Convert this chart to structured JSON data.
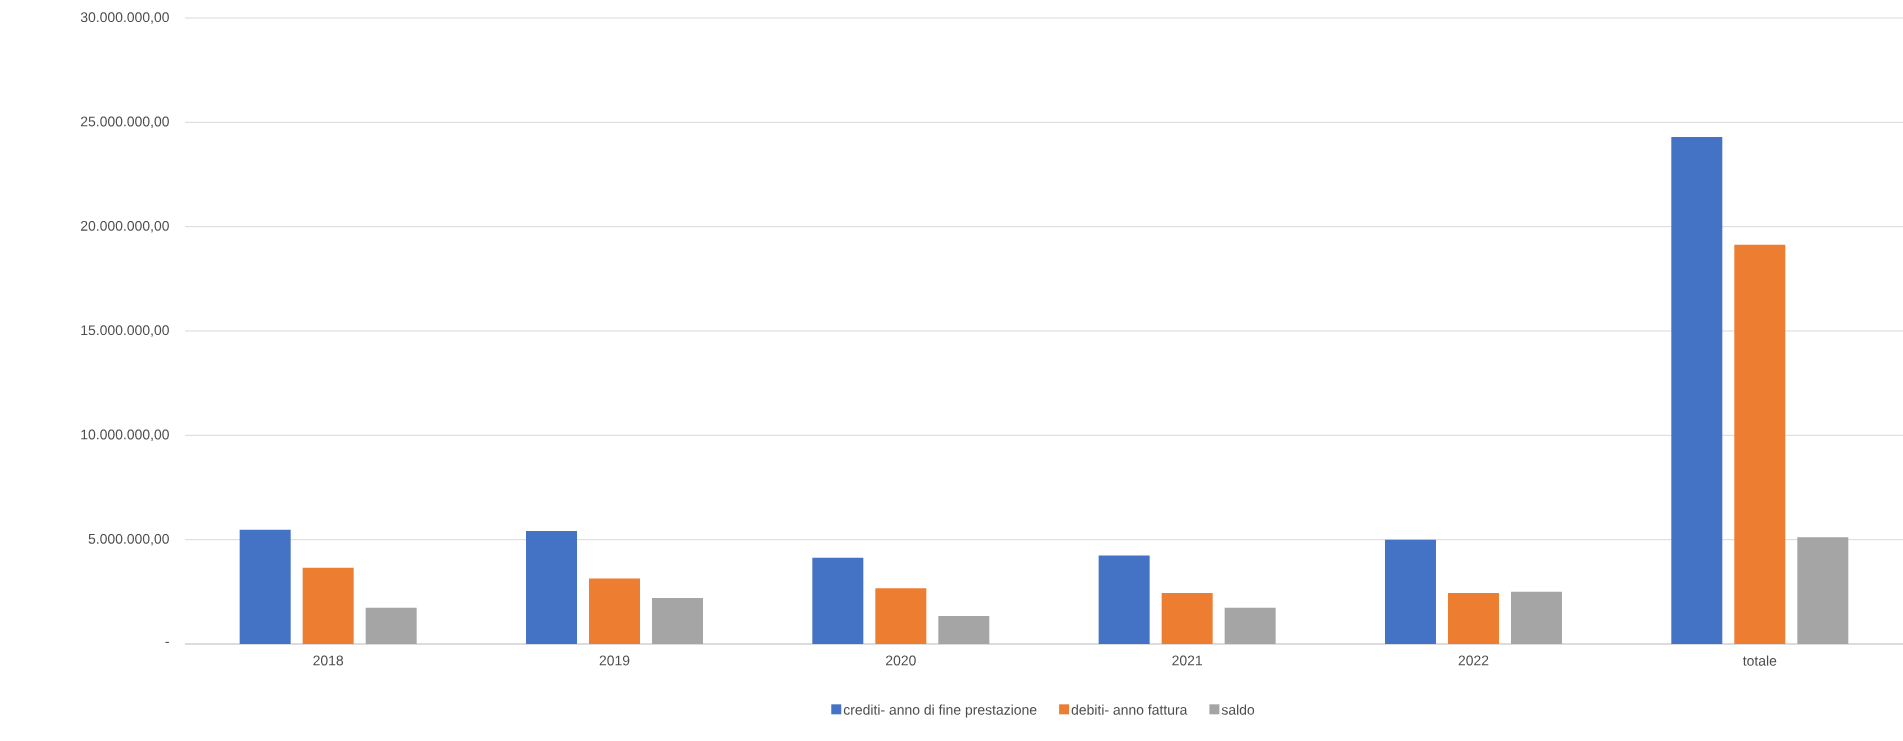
{
  "chart_data": {
    "type": "bar",
    "categories": [
      "2018",
      "2019",
      "2020",
      "2021",
      "2022",
      "totale"
    ],
    "series": [
      {
        "name": "crediti- anno di fine prestazione",
        "color": "#4472c4",
        "values": [
          5470000,
          5410000,
          4130000,
          4240000,
          5000000,
          24300000
        ]
      },
      {
        "name": "debiti- anno fattura",
        "color": "#ed7d31",
        "values": [
          3660000,
          3140000,
          2670000,
          2440000,
          2440000,
          19130000
        ]
      },
      {
        "name": "saldo",
        "color": "#a5a5a5",
        "values": [
          1740000,
          2210000,
          1340000,
          1740000,
          2500000,
          5120000
        ]
      }
    ],
    "ylim": [
      0,
      30000000
    ],
    "yticks": [
      {
        "value": 0,
        "label": "-"
      },
      {
        "value": 5000000,
        "label": "5.000.000,00"
      },
      {
        "value": 10000000,
        "label": "10.000.000,00"
      },
      {
        "value": 15000000,
        "label": "15.000.000,00"
      },
      {
        "value": 20000000,
        "label": "20.000.000,00"
      },
      {
        "value": 25000000,
        "label": "25.000.000,00"
      },
      {
        "value": 30000000,
        "label": "30.000.000,00"
      }
    ],
    "grid": "y",
    "legend": "bottom"
  }
}
